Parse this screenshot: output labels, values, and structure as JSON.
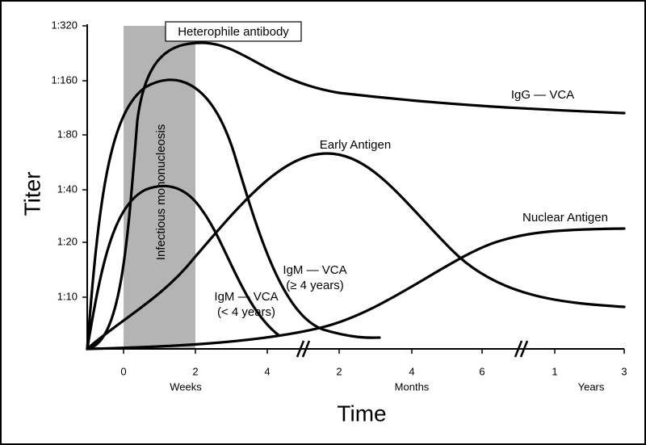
{
  "y_axis": {
    "label": "Titer",
    "ticks": [
      "1:320",
      "1:160",
      "1:80",
      "1:40",
      "1:20",
      "1:10"
    ]
  },
  "x_axis": {
    "label": "Time",
    "segments": [
      {
        "unit": "Weeks",
        "ticks": [
          "0",
          "2",
          "4"
        ]
      },
      {
        "unit": "Months",
        "ticks": [
          "2",
          "4",
          "6"
        ]
      },
      {
        "unit": "Years",
        "ticks": [
          "1",
          "3"
        ]
      }
    ]
  },
  "annotations": {
    "shaded_period": "Infectious mononucleosis",
    "box": "Heterophile antibody"
  },
  "curves": [
    {
      "label": [
        "IgG — VCA"
      ]
    },
    {
      "label": [
        "Early Antigen"
      ]
    },
    {
      "label": [
        "Nuclear Antigen"
      ]
    },
    {
      "label": [
        "IgM — VCA",
        "(≥ 4 years)"
      ]
    },
    {
      "label": [
        "IgM — VCA",
        "(< 4 years)"
      ]
    }
  ]
}
